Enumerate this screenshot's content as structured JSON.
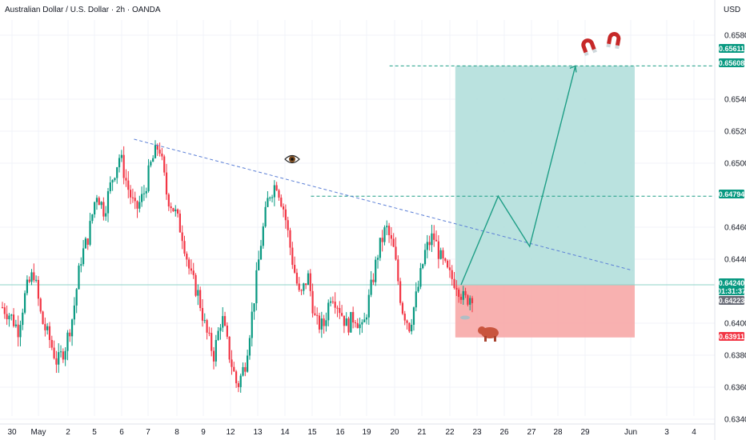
{
  "header": {
    "symbol_title": "Australian Dollar / U.S. Dollar · 2h · OANDA",
    "currency": "USD"
  },
  "colors": {
    "up": "#089981",
    "down": "#f23645",
    "target_zone": "#b2dfdb",
    "stop_zone": "#f7a9a7",
    "trendline": "#5b7fd6",
    "projection": "#1e9e86",
    "tag_green": "#089981",
    "tag_red": "#f23645",
    "tag_gray": "#6a6d78",
    "magnet": "#c62828"
  },
  "chart_data": {
    "type": "candlestick",
    "ylim": [
      0.634,
      0.659
    ],
    "y_ticks": [
      "0.65800",
      "0.65400",
      "0.65200",
      "0.65000",
      "0.64600",
      "0.64400",
      "0.64000",
      "0.63800",
      "0.63600",
      "0.63400"
    ],
    "x_ticks": [
      "30",
      "May",
      "2",
      "5",
      "6",
      "7",
      "8",
      "9",
      "12",
      "13",
      "14",
      "15",
      "16",
      "19",
      "20",
      "21",
      "22",
      "23",
      "26",
      "27",
      "28",
      "29",
      "Jun",
      "3",
      "4"
    ],
    "price_tags": [
      {
        "label": "0.65611",
        "kind": "green",
        "value": 0.65611
      },
      {
        "label": "0.65608",
        "kind": "green",
        "value": 0.65608
      },
      {
        "label": "0.64794",
        "kind": "green",
        "value": 0.64794
      },
      {
        "label": "0.64240",
        "kind": "green",
        "value": 0.6424
      },
      {
        "label": "01:31:37",
        "kind": "green",
        "value": 0.6424
      },
      {
        "label": "0.64223",
        "kind": "gray",
        "value": 0.64223
      },
      {
        "label": "0.63911",
        "kind": "red",
        "value": 0.63911
      }
    ],
    "price_anchors": [
      [
        0.641,
        0.6405,
        0.6396,
        0.642,
        0.6432,
        0.6402,
        0.639,
        0.6375,
        0.6385,
        0.6405,
        0.644,
        0.6455,
        0.6482,
        0.647,
        0.649,
        0.6505,
        0.6485,
        0.647,
        0.648,
        0.65,
        0.6512,
        0.648,
        0.647,
        0.6455,
        0.643,
        0.6418,
        0.6395,
        0.638,
        0.6405,
        0.638,
        0.636,
        0.6375,
        0.641,
        0.645,
        0.648,
        0.6488,
        0.647,
        0.644,
        0.6415,
        0.643,
        0.64,
        0.6398,
        0.642,
        0.641,
        0.6398,
        0.6405,
        0.6395,
        0.642,
        0.6445,
        0.646,
        0.6445,
        0.641,
        0.6398,
        0.642,
        0.6445,
        0.6455,
        0.644,
        0.643,
        0.6425,
        0.6414,
        0.6418
      ]
    ],
    "candle_count": 210,
    "trendline": {
      "from": [
        0.1875,
        0.6515
      ],
      "to": [
        0.885,
        0.6433
      ]
    },
    "position": {
      "entry": 0.6424,
      "target": 0.65608,
      "stop": 0.63911,
      "start_x": 0.637,
      "end_x": 0.888
    },
    "levels": [
      {
        "value": 0.65608,
        "from_x": 0.545
      },
      {
        "value": 0.64794,
        "from_x": 0.435
      }
    ],
    "projection_path": [
      [
        0.645,
        0.6424
      ],
      [
        0.697,
        0.64794
      ],
      [
        0.741,
        0.6448
      ],
      [
        0.805,
        0.65608
      ]
    ],
    "annotations": [
      "eye-icon",
      "magnet-icon",
      "magnet-icon",
      "bear-icon"
    ]
  }
}
